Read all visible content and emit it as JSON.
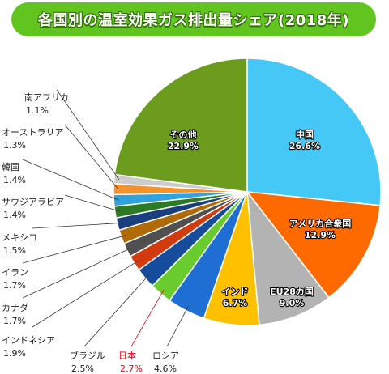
{
  "title": "各国別の温室効果ガス排出量シェア(2018年)",
  "chart_data": {
    "type": "pie",
    "title": "各国別の温室効果ガス排出量シェア(2018年)",
    "unit": "%",
    "slices": [
      {
        "label": "中国",
        "value": 26.6,
        "display": "26.6%",
        "color": "#45c8f5"
      },
      {
        "label": "アメリカ合衆国",
        "value": 12.9,
        "display": "12.9%",
        "color": "#ff6a00"
      },
      {
        "label": "EU28カ国",
        "value": 9.0,
        "display": "9.0%",
        "color": "#b3b3b3"
      },
      {
        "label": "インド",
        "value": 6.7,
        "display": "6.7%",
        "color": "#ffc000"
      },
      {
        "label": "ロシア",
        "value": 4.6,
        "display": "4.6%",
        "color": "#1f6ed4"
      },
      {
        "label": "日本",
        "value": 2.7,
        "display": "2.7%",
        "color": "#6acb2f"
      },
      {
        "label": "ブラジル",
        "value": 2.5,
        "display": "2.5%",
        "color": "#154c9c"
      },
      {
        "label": "インドネシア",
        "value": 1.9,
        "display": "1.9%",
        "color": "#d23a10"
      },
      {
        "label": "カナダ",
        "value": 1.7,
        "display": "1.7%",
        "color": "#505050"
      },
      {
        "label": "イラン",
        "value": 1.7,
        "display": "1.7%",
        "color": "#b06b08"
      },
      {
        "label": "メキシコ",
        "value": 1.5,
        "display": "1.5%",
        "color": "#1a3f80"
      },
      {
        "label": "サウジアラビア",
        "value": 1.4,
        "display": "1.4%",
        "color": "#2d7a24"
      },
      {
        "label": "韓国",
        "value": 1.4,
        "display": "1.4%",
        "color": "#2fa2e0"
      },
      {
        "label": "オーストラリア",
        "value": 1.3,
        "display": "1.3%",
        "color": "#f6922a"
      },
      {
        "label": "南アフリカ",
        "value": 1.1,
        "display": "1.1%",
        "color": "#cccccc"
      },
      {
        "label": "その他",
        "value": 22.9,
        "display": "22.9%",
        "color": "#6b9c1e"
      }
    ],
    "highlight": "日本",
    "highlight_color": "#e60012"
  }
}
